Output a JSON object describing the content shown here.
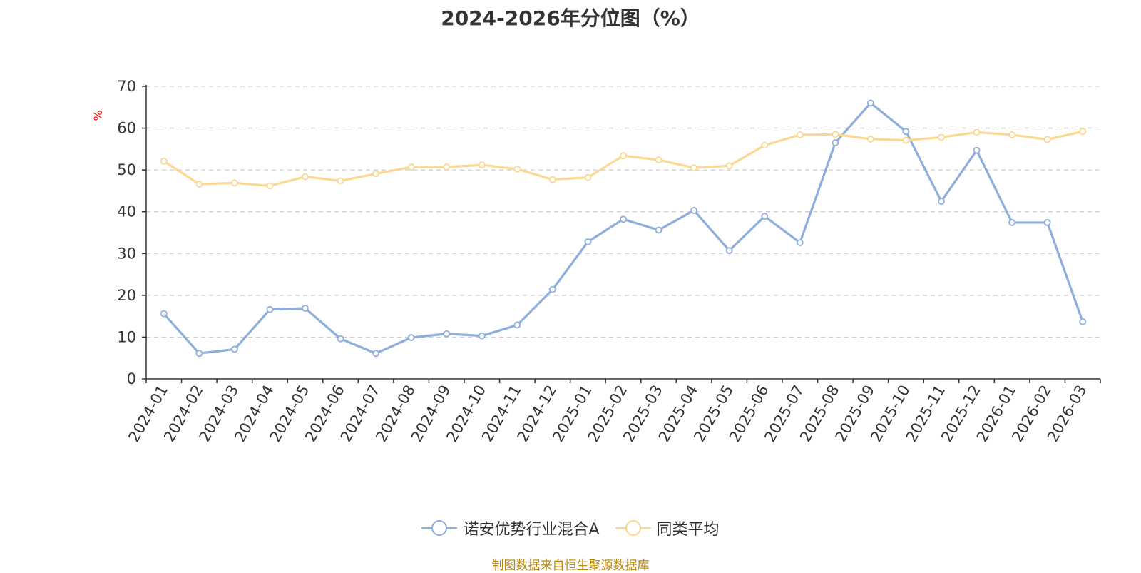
{
  "chart_data": {
    "type": "line",
    "title": "2024-2026年分位图（%）",
    "ylabel": "%",
    "xlabel": "",
    "ylim": [
      0,
      70
    ],
    "yticks": [
      0,
      10,
      20,
      30,
      40,
      50,
      60,
      70
    ],
    "grid": true,
    "legend_position": "bottom",
    "categories": [
      "2024-01",
      "2024-02",
      "2024-03",
      "2024-04",
      "2024-05",
      "2024-06",
      "2024-07",
      "2024-08",
      "2024-09",
      "2024-10",
      "2024-11",
      "2024-12",
      "2025-01",
      "2025-02",
      "2025-03",
      "2025-04",
      "2025-05",
      "2025-06",
      "2025-07",
      "2025-08",
      "2025-09",
      "2025-10",
      "2025-11",
      "2025-12",
      "2026-01",
      "2026-02",
      "2026-03"
    ],
    "series": [
      {
        "name": "诺安优势行业混合A",
        "color": "#8eaedb",
        "values": [
          15.6,
          6.1,
          7.1,
          16.6,
          16.9,
          9.6,
          6.1,
          9.9,
          10.8,
          10.3,
          12.9,
          21.4,
          32.8,
          38.2,
          35.6,
          40.3,
          30.7,
          38.9,
          32.6,
          56.5,
          66.0,
          59.2,
          42.5,
          54.7,
          37.4,
          37.4,
          13.7
        ]
      },
      {
        "name": "同类平均",
        "color": "#fbd894",
        "values": [
          52.1,
          46.6,
          46.9,
          46.2,
          48.4,
          47.4,
          49.1,
          50.7,
          50.7,
          51.2,
          50.2,
          47.7,
          48.2,
          53.4,
          52.4,
          50.5,
          51.0,
          55.9,
          58.4,
          58.5,
          57.4,
          57.1,
          57.8,
          59.0,
          58.4,
          57.3,
          59.2
        ]
      }
    ]
  },
  "source": "制图数据来自恒生聚源数据库",
  "colors": {
    "axis": "#333333",
    "grid": "#cccccc",
    "ylabel": "#ff0000",
    "source": "#b8860b"
  }
}
